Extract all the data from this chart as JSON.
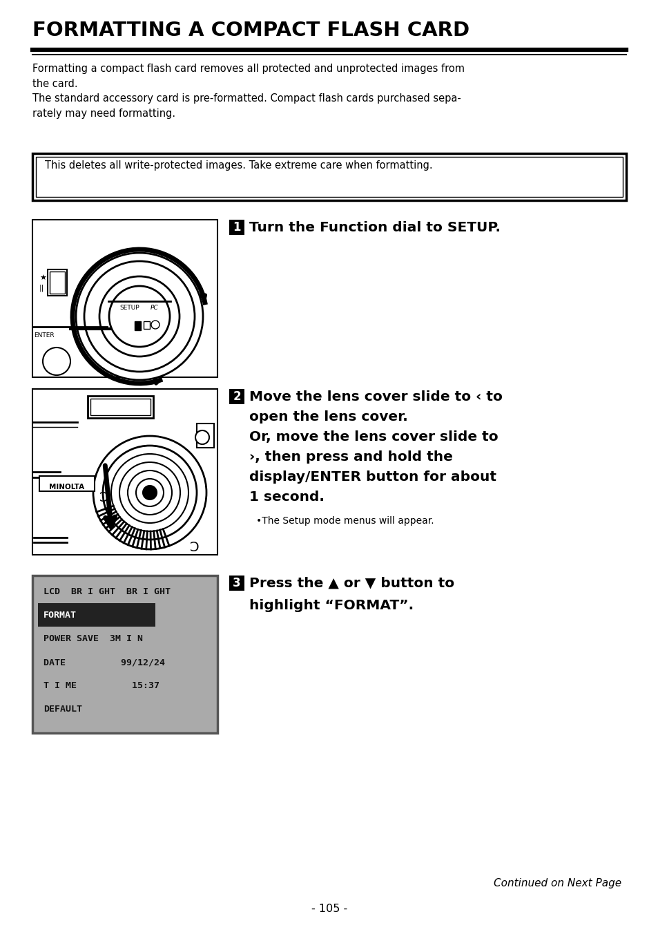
{
  "title": "FORMATTING A COMPACT FLASH CARD",
  "bg_color": "#ffffff",
  "text_color": "#000000",
  "body_text_1": "Formatting a compact flash card removes all protected and unprotected images from\nthe card.\nThe standard accessory card is pre-formatted. Compact flash cards purchased sepa-\nrately may need formatting.",
  "warning_text": "This deletes all write-protected images. Take extreme care when formatting.",
  "step1_num": "1",
  "step1_text": "Turn the Function dial to SETUP.",
  "step2_num": "2",
  "step2_bold_lines": [
    "Move the lens cover slide to ‹ to",
    "open the lens cover.",
    "Or, move the lens cover slide to",
    "›, then press and hold the",
    "display/ENTER button for about",
    "1 second."
  ],
  "step2_text_small": "•The Setup mode menus will appear.",
  "step3_num": "3",
  "step3_bold_lines": [
    "Press the ▲ or ▼ button to",
    "highlight “FORMAT”."
  ],
  "lcd_lines": [
    {
      "text": "LCD  BR I GHT  BR I GHT",
      "highlight": false
    },
    {
      "text": "FORMAT",
      "highlight": true
    },
    {
      "text": "POWER SAVE  3M I N",
      "highlight": false
    },
    {
      "text": "DATE          99/12/24",
      "highlight": false
    },
    {
      "text": "T I ME          15:37",
      "highlight": false
    },
    {
      "text": "DEFAULT",
      "highlight": false
    }
  ],
  "footer_text": "- 105 -",
  "continued_text": "Continued on Next Page",
  "lcd_bg": "#aaaaaa",
  "lcd_border": "#555555",
  "lcd_highlight": "#222222",
  "lcd_text_normal": "#111111",
  "lcd_text_highlight": "#ffffff"
}
